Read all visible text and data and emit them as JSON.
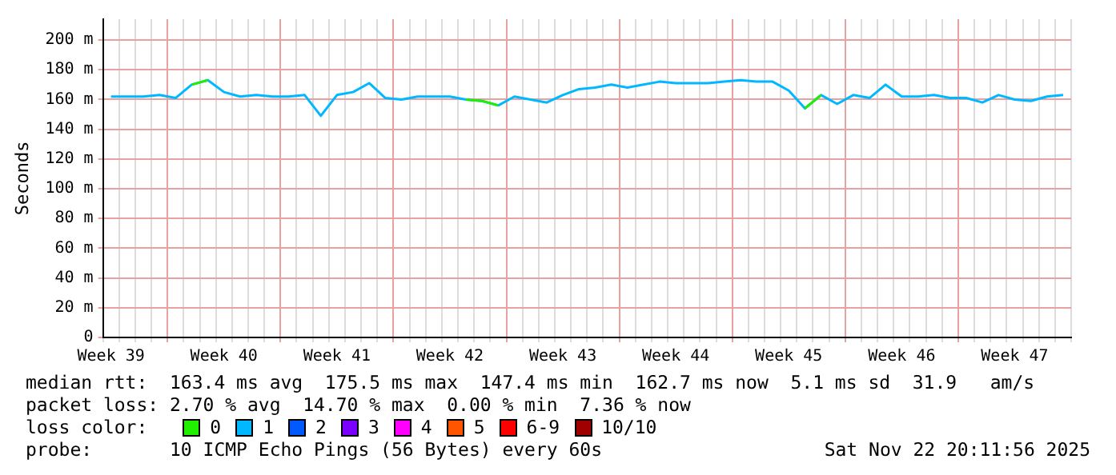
{
  "chart_data": {
    "type": "line",
    "ylabel": "Seconds",
    "legend_title": "loss color:",
    "legend": "bottom",
    "grid": true,
    "marker": "none",
    "line_style": "solid",
    "categories": [
      "Week 39",
      null,
      null,
      null,
      null,
      null,
      null,
      "Week 40",
      null,
      null,
      null,
      null,
      null,
      null,
      "Week 41",
      null,
      null,
      null,
      null,
      null,
      null,
      "Week 42",
      null,
      null,
      null,
      null,
      null,
      null,
      "Week 43",
      null,
      null,
      null,
      null,
      null,
      null,
      "Week 44",
      null,
      null,
      null,
      null,
      null,
      null,
      "Week 45",
      null,
      null,
      null,
      null,
      null,
      null,
      "Week 46",
      null,
      null,
      null,
      null,
      null,
      null,
      "Week 47",
      null,
      null,
      null
    ],
    "ylim": [
      0,
      214
    ],
    "yticks": [
      {
        "value": 0,
        "label": "0"
      },
      {
        "value": 20,
        "label": "20 m"
      },
      {
        "value": 40,
        "label": "40 m"
      },
      {
        "value": 60,
        "label": "60 m"
      },
      {
        "value": 80,
        "label": "80 m"
      },
      {
        "value": 100,
        "label": "100 m"
      },
      {
        "value": 120,
        "label": "120 m"
      },
      {
        "value": 140,
        "label": "140 m"
      },
      {
        "value": 160,
        "label": "160 m"
      },
      {
        "value": 180,
        "label": "180 m"
      },
      {
        "value": 200,
        "label": "200 m"
      }
    ],
    "series": [
      {
        "name": "0",
        "color": "#22ee00",
        "values": [
          null,
          null,
          null,
          null,
          null,
          170,
          173,
          null,
          null,
          null,
          null,
          null,
          null,
          null,
          null,
          null,
          null,
          null,
          null,
          null,
          null,
          null,
          160,
          159,
          156,
          null,
          null,
          null,
          null,
          null,
          null,
          null,
          null,
          null,
          null,
          null,
          null,
          null,
          null,
          null,
          null,
          null,
          null,
          154,
          163,
          null,
          null,
          null,
          null,
          null,
          null,
          null,
          null,
          null,
          null,
          null,
          null,
          null,
          null,
          null
        ]
      },
      {
        "name": "1",
        "color": "#00b8ff",
        "values": [
          162,
          162,
          162,
          163,
          161,
          170,
          173,
          165,
          162,
          163,
          162,
          162,
          163,
          149,
          163,
          165,
          171,
          161,
          160,
          162,
          162,
          162,
          160,
          159,
          156,
          162,
          160,
          158,
          163,
          167,
          168,
          170,
          168,
          170,
          172,
          171,
          171,
          171,
          172,
          173,
          172,
          172,
          166,
          154,
          163,
          157,
          163,
          161,
          170,
          162,
          162,
          163,
          161,
          161,
          158,
          163,
          160,
          159,
          162,
          163
        ]
      },
      {
        "name": "2",
        "color": "#0059ff",
        "values": [
          null,
          null,
          null,
          null,
          null,
          null,
          null,
          null,
          null,
          null,
          null,
          null,
          null,
          null,
          null,
          null,
          null,
          null,
          null,
          null,
          null,
          null,
          null,
          null,
          null,
          null,
          null,
          null,
          null,
          null,
          null,
          null,
          null,
          null,
          null,
          null,
          null,
          null,
          null,
          null,
          null,
          null,
          null,
          null,
          null,
          null,
          null,
          null,
          null,
          null,
          null,
          null,
          null,
          null,
          null,
          null,
          null,
          null,
          null,
          null
        ]
      },
      {
        "name": "3",
        "color": "#7a00ff",
        "values": [
          null,
          null,
          null,
          null,
          null,
          null,
          null,
          null,
          null,
          null,
          null,
          null,
          null,
          null,
          null,
          null,
          null,
          null,
          null,
          null,
          null,
          null,
          null,
          null,
          null,
          null,
          null,
          null,
          null,
          null,
          null,
          null,
          null,
          null,
          null,
          null,
          null,
          null,
          null,
          null,
          null,
          null,
          null,
          null,
          null,
          null,
          null,
          null,
          null,
          null,
          null,
          null,
          null,
          null,
          null,
          null,
          null,
          null,
          null,
          null
        ]
      },
      {
        "name": "4",
        "color": "#ff00ff",
        "values": [
          null,
          null,
          null,
          null,
          null,
          null,
          null,
          null,
          null,
          null,
          null,
          null,
          null,
          null,
          null,
          null,
          null,
          null,
          null,
          null,
          null,
          null,
          null,
          null,
          null,
          null,
          null,
          null,
          null,
          null,
          null,
          null,
          null,
          null,
          null,
          null,
          null,
          null,
          null,
          null,
          null,
          null,
          null,
          null,
          null,
          null,
          null,
          null,
          null,
          null,
          null,
          null,
          null,
          null,
          null,
          null,
          null,
          null,
          null,
          null
        ]
      },
      {
        "name": "5",
        "color": "#ff5500",
        "values": [
          null,
          null,
          null,
          null,
          null,
          null,
          null,
          null,
          null,
          null,
          null,
          null,
          null,
          null,
          null,
          null,
          null,
          null,
          null,
          null,
          null,
          null,
          null,
          null,
          null,
          null,
          null,
          null,
          null,
          null,
          null,
          null,
          null,
          null,
          null,
          null,
          null,
          null,
          null,
          null,
          null,
          null,
          null,
          null,
          null,
          null,
          null,
          null,
          null,
          null,
          null,
          null,
          null,
          null,
          null,
          null,
          null,
          null,
          null,
          null
        ]
      },
      {
        "name": "6-9",
        "color": "#ff0000",
        "values": [
          null,
          null,
          null,
          null,
          null,
          null,
          null,
          null,
          null,
          null,
          null,
          null,
          null,
          null,
          null,
          null,
          null,
          null,
          null,
          null,
          null,
          null,
          null,
          null,
          null,
          null,
          null,
          null,
          null,
          null,
          null,
          null,
          null,
          null,
          null,
          null,
          null,
          null,
          null,
          null,
          null,
          null,
          null,
          null,
          null,
          null,
          null,
          null,
          null,
          null,
          null,
          null,
          null,
          null,
          null,
          null,
          null,
          null,
          null,
          null
        ]
      },
      {
        "name": "10/10",
        "color": "#a10000",
        "values": [
          null,
          null,
          null,
          null,
          null,
          null,
          null,
          null,
          null,
          null,
          null,
          null,
          null,
          null,
          null,
          null,
          null,
          null,
          null,
          null,
          null,
          null,
          null,
          null,
          null,
          null,
          null,
          null,
          null,
          null,
          null,
          null,
          null,
          null,
          null,
          null,
          null,
          null,
          null,
          null,
          null,
          null,
          null,
          null,
          null,
          null,
          null,
          null,
          null,
          null,
          null,
          null,
          null,
          null,
          null,
          null,
          null,
          null,
          null,
          null
        ]
      }
    ],
    "annotations": [
      "median rtt:  163.4 ms avg  175.5 ms max  147.4 ms min  162.7 ms now  5.1 ms sd  31.9   am/s",
      "packet loss: 2.70 % avg  14.70 % max  0.00 % min  7.36 % now",
      "probe:       10 ICMP Echo Pings (56 Bytes) every 60s",
      "Sat Nov 22 20:11:56 2025"
    ]
  }
}
